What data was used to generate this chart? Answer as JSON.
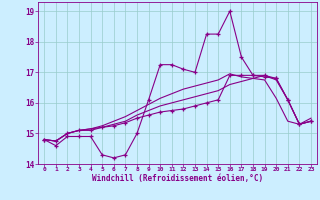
{
  "xlabel": "Windchill (Refroidissement éolien,°C)",
  "bg_color": "#cceeff",
  "line_color": "#880088",
  "grid_color": "#99cccc",
  "xlim": [
    -0.5,
    23.5
  ],
  "ylim": [
    14.0,
    19.3
  ],
  "yticks": [
    14,
    15,
    16,
    17,
    18,
    19
  ],
  "xticks": [
    0,
    1,
    2,
    3,
    4,
    5,
    6,
    7,
    8,
    9,
    10,
    11,
    12,
    13,
    14,
    15,
    16,
    17,
    18,
    19,
    20,
    21,
    22,
    23
  ],
  "series1_x": [
    0,
    1,
    2,
    3,
    4,
    5,
    6,
    7,
    8,
    9,
    10,
    11,
    12,
    13,
    14,
    15,
    16,
    17,
    18,
    19,
    20,
    21,
    22,
    23
  ],
  "series1_y": [
    14.8,
    14.6,
    14.9,
    14.9,
    14.9,
    14.3,
    14.2,
    14.3,
    15.0,
    16.1,
    17.25,
    17.25,
    17.1,
    17.0,
    18.25,
    18.25,
    19.0,
    17.5,
    16.9,
    16.9,
    16.8,
    16.1,
    15.3,
    15.4
  ],
  "series2_x": [
    0,
    1,
    2,
    3,
    4,
    5,
    6,
    7,
    8,
    9,
    10,
    11,
    12,
    13,
    14,
    15,
    16,
    17,
    18,
    19,
    20,
    21,
    22,
    23
  ],
  "series2_y": [
    14.8,
    14.75,
    15.0,
    15.1,
    15.1,
    15.2,
    15.25,
    15.35,
    15.5,
    15.6,
    15.7,
    15.75,
    15.8,
    15.9,
    16.0,
    16.1,
    16.9,
    16.9,
    16.9,
    16.85,
    16.8,
    16.1,
    15.3,
    15.4
  ],
  "series3_x": [
    0,
    1,
    2,
    3,
    4,
    5,
    6,
    7,
    8,
    9,
    10,
    11,
    12,
    13,
    14,
    15,
    16,
    17,
    18,
    19,
    20,
    21,
    22,
    23
  ],
  "series3_y": [
    14.8,
    14.75,
    15.0,
    15.1,
    15.15,
    15.2,
    15.3,
    15.4,
    15.6,
    15.75,
    15.9,
    16.0,
    16.1,
    16.2,
    16.3,
    16.4,
    16.6,
    16.7,
    16.8,
    16.9,
    16.75,
    16.1,
    15.3,
    15.4
  ],
  "series4_x": [
    0,
    1,
    2,
    3,
    4,
    5,
    6,
    7,
    8,
    9,
    10,
    11,
    12,
    13,
    14,
    15,
    16,
    17,
    18,
    19,
    20,
    21,
    22,
    23
  ],
  "series4_y": [
    14.8,
    14.75,
    15.0,
    15.1,
    15.15,
    15.25,
    15.4,
    15.55,
    15.75,
    15.95,
    16.15,
    16.3,
    16.45,
    16.55,
    16.65,
    16.75,
    16.95,
    16.85,
    16.8,
    16.75,
    16.15,
    15.4,
    15.3,
    15.5
  ]
}
